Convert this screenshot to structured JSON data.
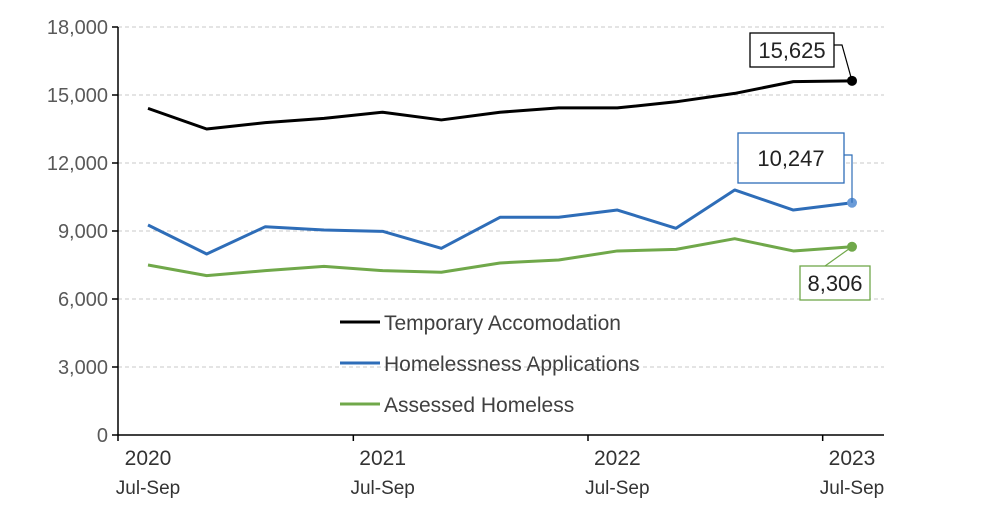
{
  "chart_data": {
    "type": "line",
    "title": "",
    "xlabel": "",
    "ylabel": "",
    "ylim": [
      0,
      18000
    ],
    "yticks": [
      0,
      3000,
      6000,
      9000,
      12000,
      15000,
      18000
    ],
    "ytick_labels": [
      "0",
      "3,000",
      "6,000",
      "9,000",
      "12,000",
      "15,000",
      "18,000"
    ],
    "x_count": 13,
    "xtick_labels": [
      {
        "index": 0,
        "year": "2020",
        "quarter": "Jul-Sep"
      },
      {
        "index": 4,
        "year": "2021",
        "quarter": "Jul-Sep"
      },
      {
        "index": 8,
        "year": "2022",
        "quarter": "Jul-Sep"
      },
      {
        "index": 12,
        "year": "2023",
        "quarter": "Jul-Sep"
      }
    ],
    "grid": "horizontal dashed",
    "legend_placement": "center-bottom",
    "series": [
      {
        "name": "Temporary Accomodation",
        "color": "#000000",
        "values": [
          14410,
          13500,
          13780,
          13970,
          14240,
          13900,
          14240,
          14430,
          14430,
          14700,
          15070,
          15590,
          15625
        ],
        "end_label": "15,625"
      },
      {
        "name": "Homelessness Applications",
        "color": "#2E6DB8",
        "values": [
          9265,
          7985,
          9190,
          9045,
          8985,
          8235,
          9605,
          9605,
          9925,
          9120,
          10810,
          9925,
          10247
        ],
        "end_label": "10,247",
        "marker_color": "#6A9BD8"
      },
      {
        "name": "Assessed Homeless",
        "color": "#70A84A",
        "values": [
          7500,
          7030,
          7250,
          7440,
          7250,
          7180,
          7590,
          7720,
          8120,
          8190,
          8660,
          8120,
          8306
        ],
        "end_label": "8,306"
      }
    ]
  }
}
